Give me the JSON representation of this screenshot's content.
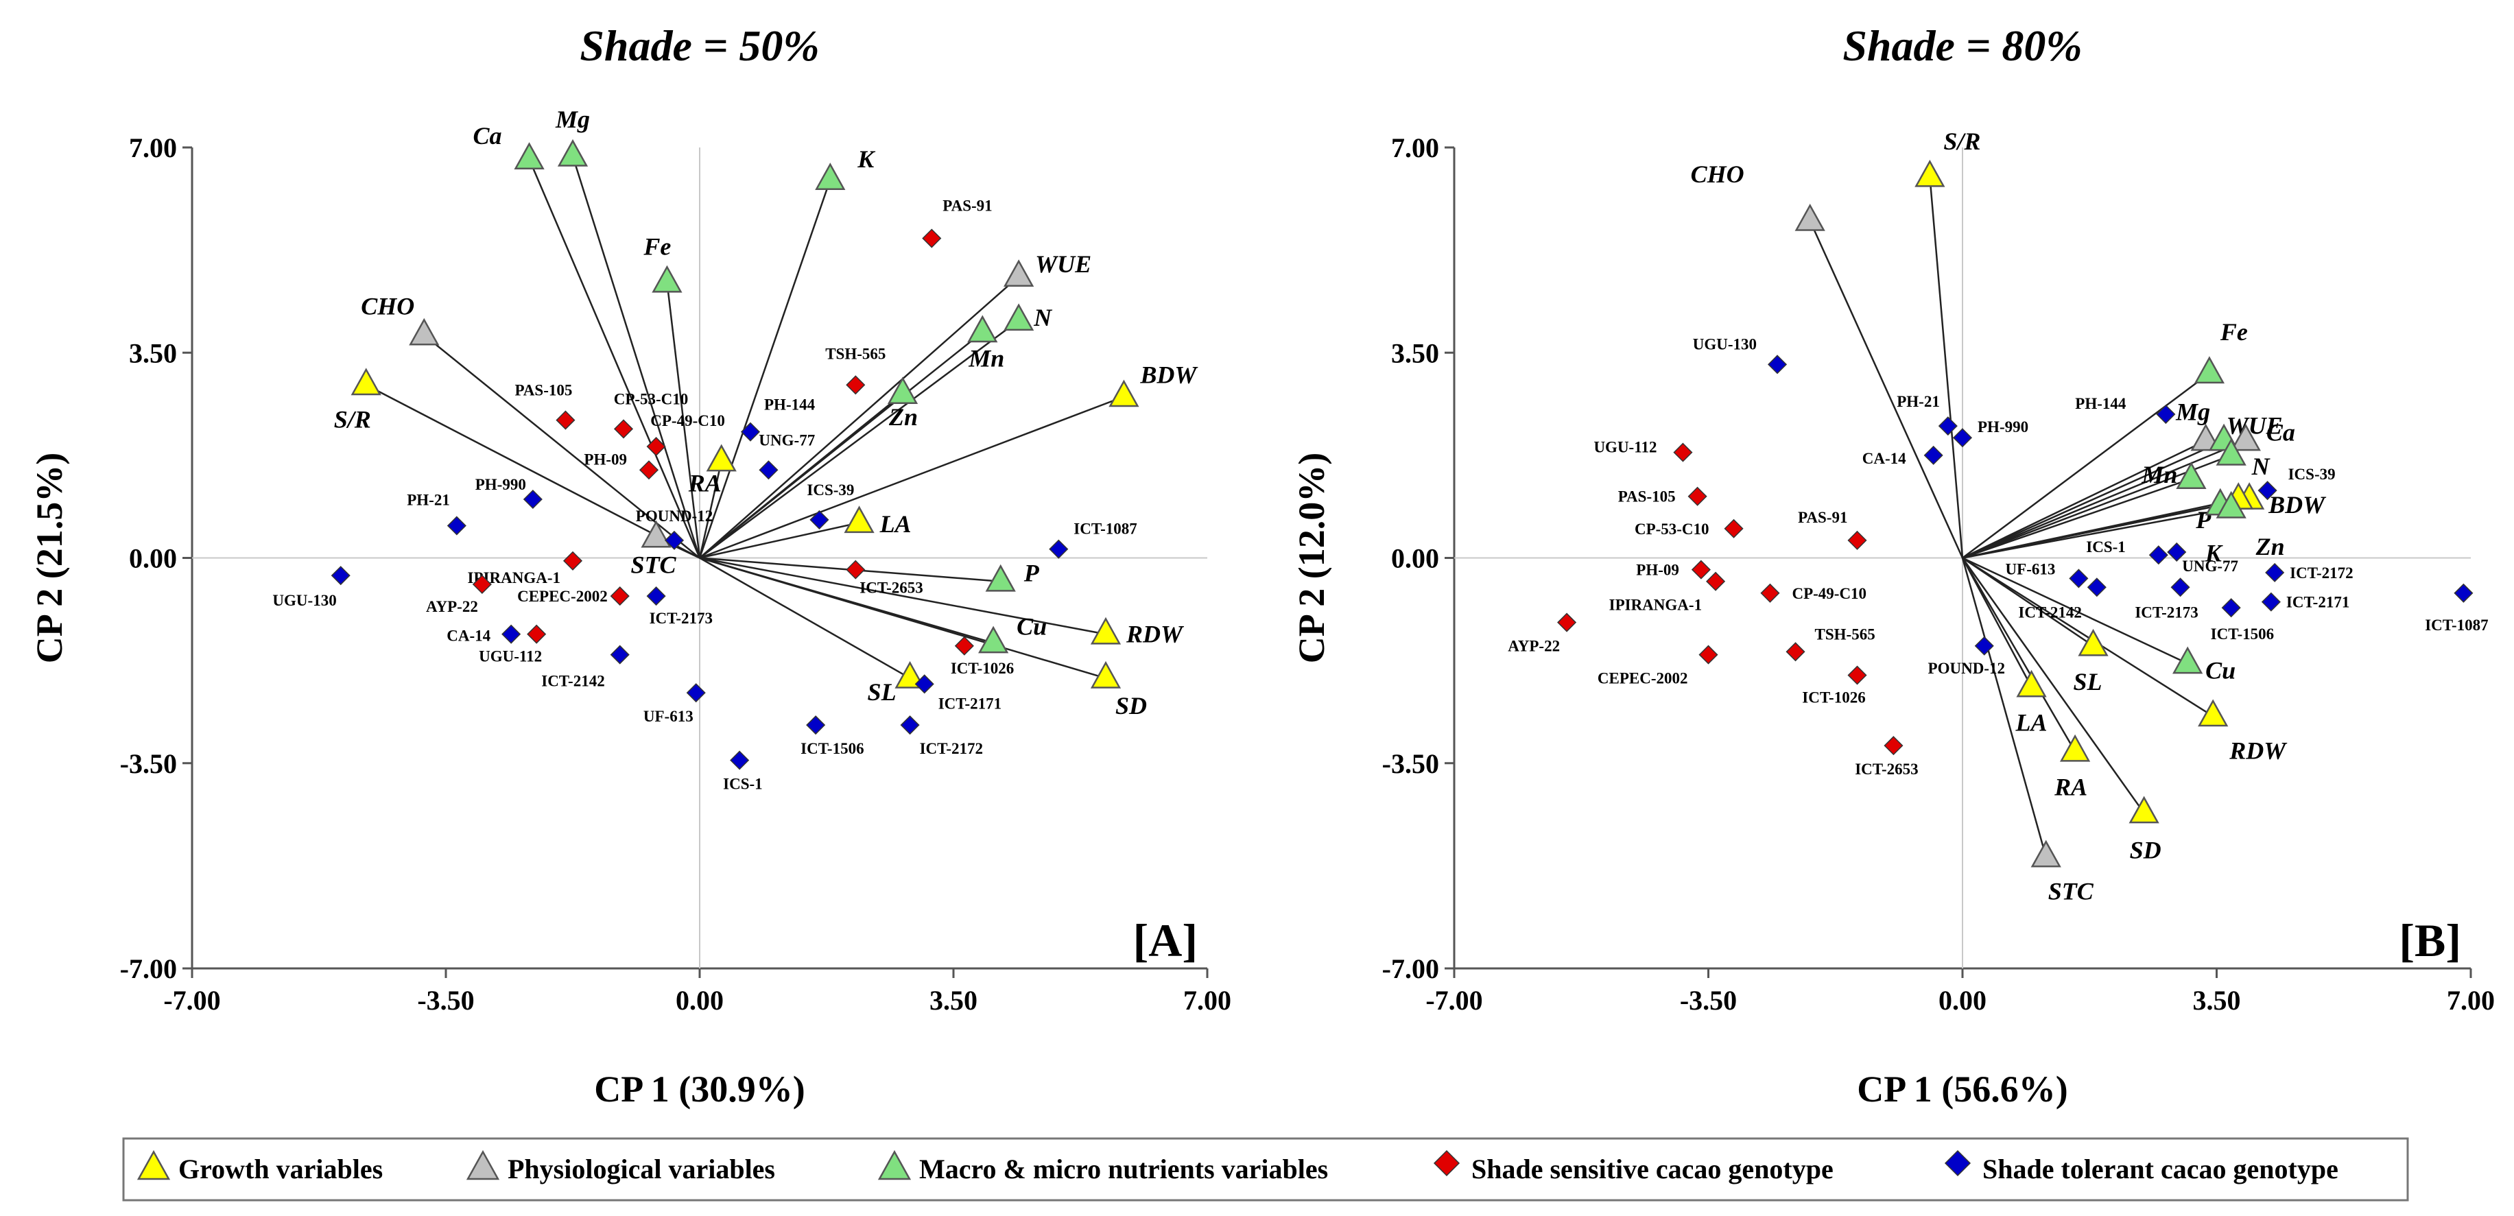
{
  "chart_data": [
    {
      "type": "scatter",
      "title": "Shade = 50%",
      "panel_label": "[A]",
      "xlabel": "CP 1 (30.9%)",
      "ylabel": "CP 2 (21.5%)",
      "xlim": [
        -7,
        7
      ],
      "ylim": [
        -7,
        7
      ],
      "xticks": [
        "-7.00",
        "-3.50",
        "0.00",
        "3.50",
        "7.00"
      ],
      "yticks": [
        "7.00",
        "3.50",
        "0.00",
        "-3.50",
        "-7.00"
      ],
      "variables": [
        {
          "name": "Ca",
          "group": "nutrient",
          "x": -2.35,
          "y": 6.8
        },
        {
          "name": "Mg",
          "group": "nutrient",
          "x": -1.75,
          "y": 6.85
        },
        {
          "name": "Fe",
          "group": "nutrient",
          "x": -0.45,
          "y": 4.7
        },
        {
          "name": "K",
          "group": "nutrient",
          "x": 1.8,
          "y": 6.45
        },
        {
          "name": "WUE",
          "group": "physiological",
          "x": 4.4,
          "y": 4.8
        },
        {
          "name": "N",
          "group": "nutrient",
          "x": 4.4,
          "y": 4.05
        },
        {
          "name": "Mn",
          "group": "nutrient",
          "x": 3.9,
          "y": 3.85
        },
        {
          "name": "Zn",
          "group": "nutrient",
          "x": 2.8,
          "y": 2.8
        },
        {
          "name": "BDW",
          "group": "growth",
          "x": 5.85,
          "y": 2.75
        },
        {
          "name": "CHO",
          "group": "physiological",
          "x": -3.8,
          "y": 3.8
        },
        {
          "name": "S/R",
          "group": "growth",
          "x": -4.6,
          "y": 2.95
        },
        {
          "name": "RA",
          "group": "growth",
          "x": 0.3,
          "y": 1.65
        },
        {
          "name": "STC",
          "group": "physiological",
          "x": -0.6,
          "y": 0.35
        },
        {
          "name": "LA",
          "group": "growth",
          "x": 2.2,
          "y": 0.6
        },
        {
          "name": "P",
          "group": "nutrient",
          "x": 4.15,
          "y": -0.4
        },
        {
          "name": "Cu",
          "group": "nutrient",
          "x": 4.05,
          "y": -1.45
        },
        {
          "name": "RDW",
          "group": "growth",
          "x": 5.6,
          "y": -1.3
        },
        {
          "name": "SD",
          "group": "growth",
          "x": 5.6,
          "y": -2.05
        },
        {
          "name": "SL",
          "group": "growth",
          "x": 2.9,
          "y": -2.05
        }
      ],
      "genotypes": [
        {
          "name": "PAS-91",
          "group": "sensitive",
          "x": 3.2,
          "y": 5.45
        },
        {
          "name": "TSH-565",
          "group": "sensitive",
          "x": 2.15,
          "y": 2.95
        },
        {
          "name": "PAS-105",
          "group": "sensitive",
          "x": -1.85,
          "y": 2.35
        },
        {
          "name": "CP-53-C10",
          "group": "sensitive",
          "x": -1.05,
          "y": 2.2
        },
        {
          "name": "CP-49-C10",
          "group": "sensitive",
          "x": -0.6,
          "y": 1.9
        },
        {
          "name": "PH-09",
          "group": "sensitive",
          "x": -0.7,
          "y": 1.5
        },
        {
          "name": "IPIRANGA-1",
          "group": "sensitive",
          "x": -1.75,
          "y": -0.05
        },
        {
          "name": "AYP-22",
          "group": "sensitive",
          "x": -3.0,
          "y": -0.45
        },
        {
          "name": "CEPEC-2002",
          "group": "sensitive",
          "x": -1.1,
          "y": -0.65
        },
        {
          "name": "UGU-112",
          "group": "sensitive",
          "x": -2.25,
          "y": -1.3
        },
        {
          "name": "ICT-2653",
          "group": "sensitive",
          "x": 2.15,
          "y": -0.2
        },
        {
          "name": "ICT-1026",
          "group": "sensitive",
          "x": 3.65,
          "y": -1.5
        },
        {
          "name": "PH-144",
          "group": "tolerant",
          "x": 0.7,
          "y": 2.15
        },
        {
          "name": "UNG-77",
          "group": "tolerant",
          "x": 0.95,
          "y": 1.5
        },
        {
          "name": "ICS-39",
          "group": "tolerant",
          "x": 1.65,
          "y": 0.65
        },
        {
          "name": "POUND-12",
          "group": "tolerant",
          "x": -0.35,
          "y": 0.3
        },
        {
          "name": "PH-990",
          "group": "tolerant",
          "x": -2.3,
          "y": 1.0
        },
        {
          "name": "PH-21",
          "group": "tolerant",
          "x": -3.35,
          "y": 0.55
        },
        {
          "name": "UGU-130",
          "group": "tolerant",
          "x": -4.95,
          "y": -0.3
        },
        {
          "name": "CA-14",
          "group": "tolerant",
          "x": -2.6,
          "y": -1.3
        },
        {
          "name": "ICT-2142",
          "group": "tolerant",
          "x": -1.1,
          "y": -1.65
        },
        {
          "name": "ICT-2173",
          "group": "tolerant",
          "x": -0.6,
          "y": -0.65
        },
        {
          "name": "UF-613",
          "group": "tolerant",
          "x": -0.05,
          "y": -2.3
        },
        {
          "name": "ICS-1",
          "group": "tolerant",
          "x": 0.55,
          "y": -3.45
        },
        {
          "name": "ICT-1506",
          "group": "tolerant",
          "x": 1.6,
          "y": -2.85
        },
        {
          "name": "ICT-2172",
          "group": "tolerant",
          "x": 2.9,
          "y": -2.85
        },
        {
          "name": "ICT-2171",
          "group": "tolerant",
          "x": 3.1,
          "y": -2.15
        },
        {
          "name": "ICT-1087",
          "group": "tolerant",
          "x": 4.95,
          "y": 0.15
        }
      ]
    },
    {
      "type": "scatter",
      "title": "Shade = 80%",
      "panel_label": "[B]",
      "xlabel": "CP 1 (56.6%)",
      "ylabel": "CP 2 (12.0%)",
      "xlim": [
        -7,
        7
      ],
      "ylim": [
        -7,
        7
      ],
      "xticks": [
        "-7.00",
        "-3.50",
        "0.00",
        "3.50",
        "7.00"
      ],
      "yticks": [
        "7.00",
        "3.50",
        "0.00",
        "-3.50",
        "-7.00"
      ],
      "variables": [
        {
          "name": "S/R",
          "group": "growth",
          "x": -0.45,
          "y": 6.5
        },
        {
          "name": "CHO",
          "group": "physiological",
          "x": -2.1,
          "y": 5.75
        },
        {
          "name": "Fe",
          "group": "nutrient",
          "x": 3.4,
          "y": 3.15
        },
        {
          "name": "WUE",
          "group": "physiological",
          "x": 3.35,
          "y": 2.0
        },
        {
          "name": "Mg",
          "group": "nutrient",
          "x": 3.6,
          "y": 2.0
        },
        {
          "name": "Ca",
          "group": "physiological",
          "x": 3.9,
          "y": 2.0
        },
        {
          "name": "N",
          "group": "nutrient",
          "x": 3.7,
          "y": 1.75
        },
        {
          "name": "Mn",
          "group": "nutrient",
          "x": 3.15,
          "y": 1.35
        },
        {
          "name": "BDW",
          "group": "growth",
          "x": 3.95,
          "y": 1.0
        },
        {
          "name": "P",
          "group": "growth",
          "x": 3.8,
          "y": 1.0
        },
        {
          "name": "K",
          "group": "nutrient",
          "x": 3.55,
          "y": 0.9
        },
        {
          "name": "Zn",
          "group": "nutrient",
          "x": 3.7,
          "y": 0.85
        },
        {
          "name": "Cu",
          "group": "nutrient",
          "x": 3.1,
          "y": -1.8
        },
        {
          "name": "SL",
          "group": "growth",
          "x": 1.8,
          "y": -1.5
        },
        {
          "name": "LA",
          "group": "growth",
          "x": 0.95,
          "y": -2.2
        },
        {
          "name": "RDW",
          "group": "growth",
          "x": 3.45,
          "y": -2.7
        },
        {
          "name": "RA",
          "group": "growth",
          "x": 1.55,
          "y": -3.3
        },
        {
          "name": "SD",
          "group": "growth",
          "x": 2.5,
          "y": -4.35
        },
        {
          "name": "STC",
          "group": "physiological",
          "x": 1.15,
          "y": -5.1
        }
      ],
      "genotypes": [
        {
          "name": "UGU-130",
          "group": "tolerant",
          "x": -2.55,
          "y": 3.3
        },
        {
          "name": "PH-21",
          "group": "tolerant",
          "x": -0.2,
          "y": 2.25
        },
        {
          "name": "PH-990",
          "group": "tolerant",
          "x": 0.0,
          "y": 2.05
        },
        {
          "name": "CA-14",
          "group": "tolerant",
          "x": -0.4,
          "y": 1.75
        },
        {
          "name": "PH-144",
          "group": "tolerant",
          "x": 2.8,
          "y": 2.45
        },
        {
          "name": "ICS-39",
          "group": "tolerant",
          "x": 4.2,
          "y": 1.15
        },
        {
          "name": "ICS-1",
          "group": "tolerant",
          "x": 2.7,
          "y": 0.05
        },
        {
          "name": "UNG-77",
          "group": "tolerant",
          "x": 2.95,
          "y": 0.1
        },
        {
          "name": "UF-613",
          "group": "tolerant",
          "x": 1.6,
          "y": -0.35
        },
        {
          "name": "ICT-2142",
          "group": "tolerant",
          "x": 1.85,
          "y": -0.5
        },
        {
          "name": "ICT-2173",
          "group": "tolerant",
          "x": 3.0,
          "y": -0.5
        },
        {
          "name": "ICT-2172",
          "group": "tolerant",
          "x": 4.3,
          "y": -0.25
        },
        {
          "name": "ICT-1506",
          "group": "tolerant",
          "x": 3.7,
          "y": -0.85
        },
        {
          "name": "ICT-2171",
          "group": "tolerant",
          "x": 4.25,
          "y": -0.75
        },
        {
          "name": "POUND-12",
          "group": "tolerant",
          "x": 0.3,
          "y": -1.5
        },
        {
          "name": "ICT-1087",
          "group": "tolerant",
          "x": 6.9,
          "y": -0.6
        },
        {
          "name": "UGU-112",
          "group": "sensitive",
          "x": -3.85,
          "y": 1.8
        },
        {
          "name": "PAS-105",
          "group": "sensitive",
          "x": -3.65,
          "y": 1.05
        },
        {
          "name": "CP-53-C10",
          "group": "sensitive",
          "x": -3.15,
          "y": 0.5
        },
        {
          "name": "PAS-91",
          "group": "sensitive",
          "x": -1.45,
          "y": 0.3
        },
        {
          "name": "PH-09",
          "group": "sensitive",
          "x": -3.6,
          "y": -0.2
        },
        {
          "name": "IPIRANGA-1",
          "group": "sensitive",
          "x": -3.4,
          "y": -0.4
        },
        {
          "name": "CP-49-C10",
          "group": "sensitive",
          "x": -2.65,
          "y": -0.6
        },
        {
          "name": "AYP-22",
          "group": "sensitive",
          "x": -5.45,
          "y": -1.1
        },
        {
          "name": "CEPEC-2002",
          "group": "sensitive",
          "x": -3.5,
          "y": -1.65
        },
        {
          "name": "TSH-565",
          "group": "sensitive",
          "x": -2.3,
          "y": -1.6
        },
        {
          "name": "ICT-1026",
          "group": "sensitive",
          "x": -1.45,
          "y": -2.0
        },
        {
          "name": "ICT-2653",
          "group": "sensitive",
          "x": -0.95,
          "y": -3.2
        }
      ]
    }
  ],
  "legend": [
    {
      "key": "growth",
      "label": "Growth variables",
      "marker": "triangle",
      "color": "#ffff00"
    },
    {
      "key": "physiological",
      "label": "Physiological variables",
      "marker": "triangle",
      "color": "#c0c0c0"
    },
    {
      "key": "nutrient",
      "label": "Macro & micro nutrients variables",
      "marker": "triangle",
      "color": "#80e080"
    },
    {
      "key": "sensitive",
      "label": "Shade sensitive cacao genotype",
      "marker": "diamond",
      "color": "#e00000"
    },
    {
      "key": "tolerant",
      "label": "Shade tolerant cacao genotype",
      "marker": "diamond",
      "color": "#0000c8"
    }
  ]
}
